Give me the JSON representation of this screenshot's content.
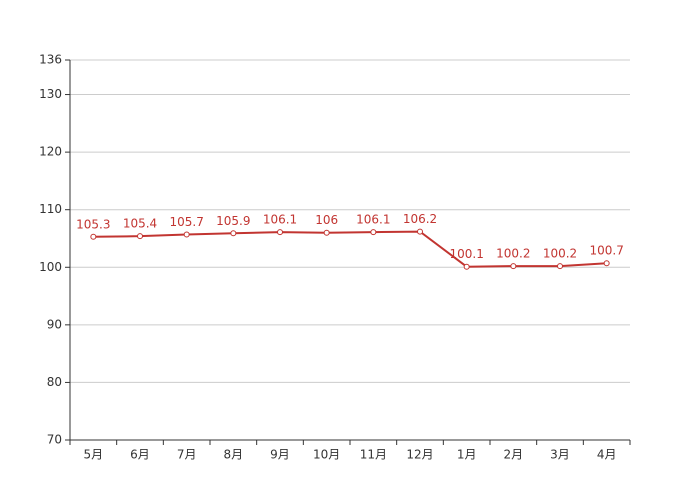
{
  "chart_data": {
    "type": "line",
    "categories": [
      "5月",
      "6月",
      "7月",
      "8月",
      "9月",
      "10月",
      "11月",
      "12月",
      "1月",
      "2月",
      "3月",
      "4月"
    ],
    "series": [
      {
        "color": "#c23531",
        "values": [
          105.3,
          105.4,
          105.7,
          105.9,
          106.1,
          106,
          106.1,
          106.2,
          100.1,
          100.2,
          100.2,
          100.7
        ]
      }
    ],
    "ylim": [
      70,
      136
    ],
    "yticks": [
      70,
      80,
      90,
      100,
      110,
      120,
      130,
      136
    ],
    "grid": true
  }
}
